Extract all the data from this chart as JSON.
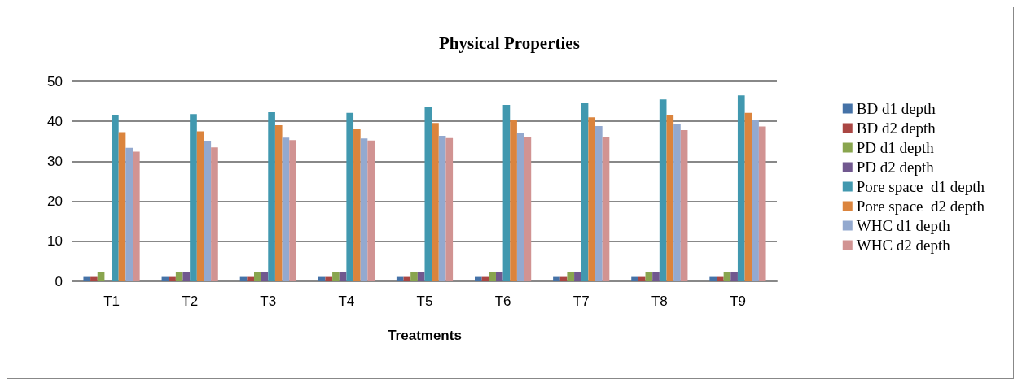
{
  "chart_data": {
    "type": "bar",
    "title": "Physical Properties",
    "xlabel": "Treatments",
    "categories": [
      "T1",
      "T2",
      "T3",
      "T4",
      "T5",
      "T6",
      "T7",
      "T8",
      "T9"
    ],
    "series": [
      {
        "name": "BD d1 depth",
        "color": "#4572a7",
        "values": [
          1.1,
          1.1,
          1.1,
          1.1,
          1.1,
          1.1,
          1.1,
          1.1,
          1.1
        ]
      },
      {
        "name": "BD d2 depth",
        "color": "#aa4643",
        "values": [
          1.1,
          1.1,
          1.1,
          1.1,
          1.1,
          1.1,
          1.1,
          1.1,
          1.1
        ]
      },
      {
        "name": "PD d1 depth",
        "color": "#89a54e",
        "values": [
          2.3,
          2.3,
          2.3,
          2.4,
          2.4,
          2.4,
          2.4,
          2.4,
          2.4
        ]
      },
      {
        "name": "PD d2 depth",
        "color": "#71588f",
        "values": [
          null,
          2.4,
          2.4,
          2.4,
          2.4,
          2.4,
          2.4,
          2.4,
          2.4
        ]
      },
      {
        "name": "Pore space  d1 depth",
        "color": "#4198af",
        "values": [
          41.5,
          41.8,
          42.3,
          42.1,
          43.7,
          44.1,
          44.5,
          45.5,
          46.5
        ]
      },
      {
        "name": "Pore space  d2 depth",
        "color": "#db843d",
        "values": [
          37.3,
          37.5,
          39.0,
          38.0,
          39.6,
          40.4,
          41.0,
          41.5,
          42.1
        ]
      },
      {
        "name": "WHC d1 depth",
        "color": "#93a9cf",
        "values": [
          33.4,
          35.0,
          35.9,
          35.7,
          36.4,
          37.1,
          38.8,
          39.4,
          40.3
        ]
      },
      {
        "name": "WHC d2 depth",
        "color": "#d19392",
        "values": [
          32.4,
          33.5,
          35.3,
          35.2,
          35.8,
          36.2,
          36.0,
          37.8,
          38.7
        ]
      }
    ],
    "ylim": [
      0,
      50
    ],
    "yticks": [
      0,
      10,
      20,
      30,
      40,
      50
    ],
    "grid": "y",
    "legend": "right"
  }
}
